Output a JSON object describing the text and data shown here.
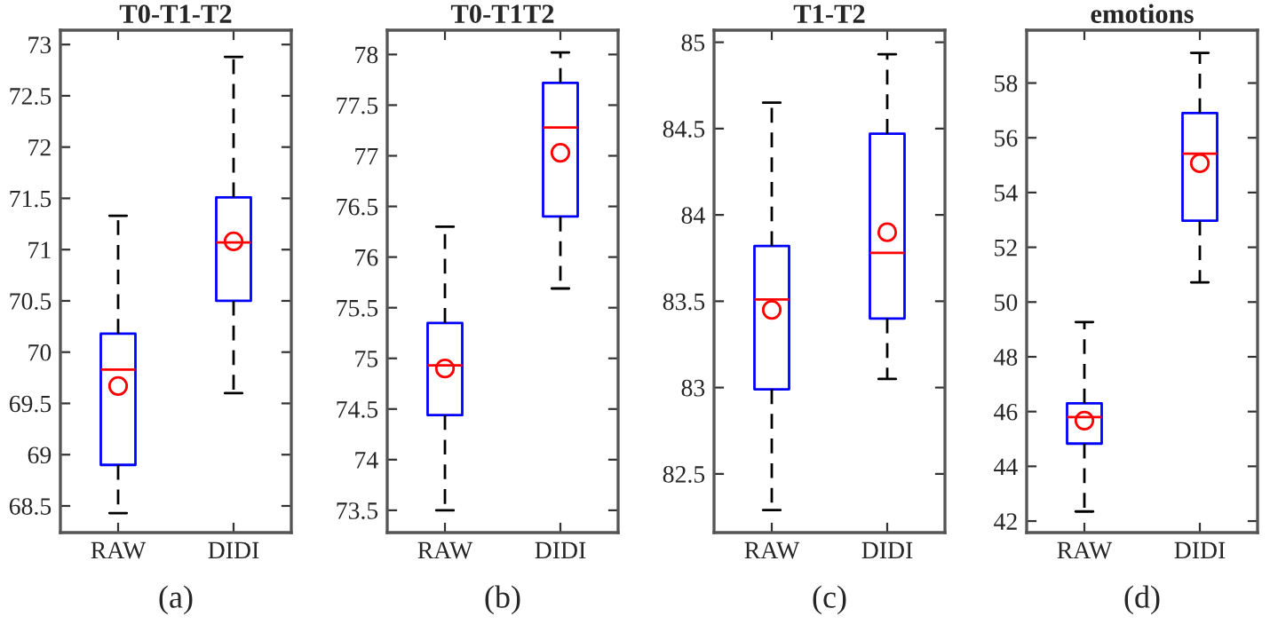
{
  "chart_data": [
    {
      "type": "box",
      "title": "T0-T1-T2",
      "categories": [
        "RAW",
        "DIDI"
      ],
      "ylim": [
        68.24,
        73.14
      ],
      "yticks": [
        68.5,
        69,
        69.5,
        70,
        70.5,
        71,
        71.5,
        72,
        72.5,
        73
      ],
      "grid": false,
      "annotations": [
        "(a)"
      ],
      "boxes": [
        {
          "low": 68.43,
          "q1": 68.9,
          "median": 69.83,
          "q3": 70.18,
          "high": 71.33,
          "mean": 69.67
        },
        {
          "low": 69.6,
          "q1": 70.5,
          "median": 71.07,
          "q3": 71.51,
          "high": 72.88,
          "mean": 71.08
        }
      ]
    },
    {
      "type": "box",
      "title": "T0-T1T2",
      "categories": [
        "RAW",
        "DIDI"
      ],
      "ylim": [
        73.28,
        78.24
      ],
      "yticks": [
        73.5,
        74,
        74.5,
        75,
        75.5,
        76,
        76.5,
        77,
        77.5,
        78
      ],
      "grid": false,
      "annotations": [
        "(b)"
      ],
      "boxes": [
        {
          "low": 73.5,
          "q1": 74.44,
          "median": 74.93,
          "q3": 75.35,
          "high": 76.3,
          "mean": 74.9
        },
        {
          "low": 75.69,
          "q1": 76.4,
          "median": 77.28,
          "q3": 77.72,
          "high": 78.02,
          "mean": 77.03
        }
      ]
    },
    {
      "type": "box",
      "title": "T1-T2",
      "categories": [
        "RAW",
        "DIDI"
      ],
      "ylim": [
        82.16,
        85.07
      ],
      "yticks": [
        82.5,
        83,
        83.5,
        84,
        84.5,
        85
      ],
      "grid": false,
      "annotations": [
        "(c)"
      ],
      "boxes": [
        {
          "low": 82.29,
          "q1": 82.99,
          "median": 83.51,
          "q3": 83.82,
          "high": 84.65,
          "mean": 83.45
        },
        {
          "low": 83.05,
          "q1": 83.4,
          "median": 83.78,
          "q3": 84.47,
          "high": 84.93,
          "mean": 83.9
        }
      ]
    },
    {
      "type": "box",
      "title": "emotions",
      "categories": [
        "RAW",
        "DIDI"
      ],
      "ylim": [
        41.58,
        59.93
      ],
      "yticks": [
        42,
        44,
        46,
        48,
        50,
        52,
        54,
        56,
        58
      ],
      "grid": false,
      "annotations": [
        "(d)"
      ],
      "boxes": [
        {
          "low": 42.35,
          "q1": 44.83,
          "median": 45.8,
          "q3": 46.3,
          "high": 49.27,
          "mean": 45.67
        },
        {
          "low": 50.72,
          "q1": 52.97,
          "median": 55.42,
          "q3": 56.9,
          "high": 59.1,
          "mean": 55.07
        }
      ]
    }
  ]
}
